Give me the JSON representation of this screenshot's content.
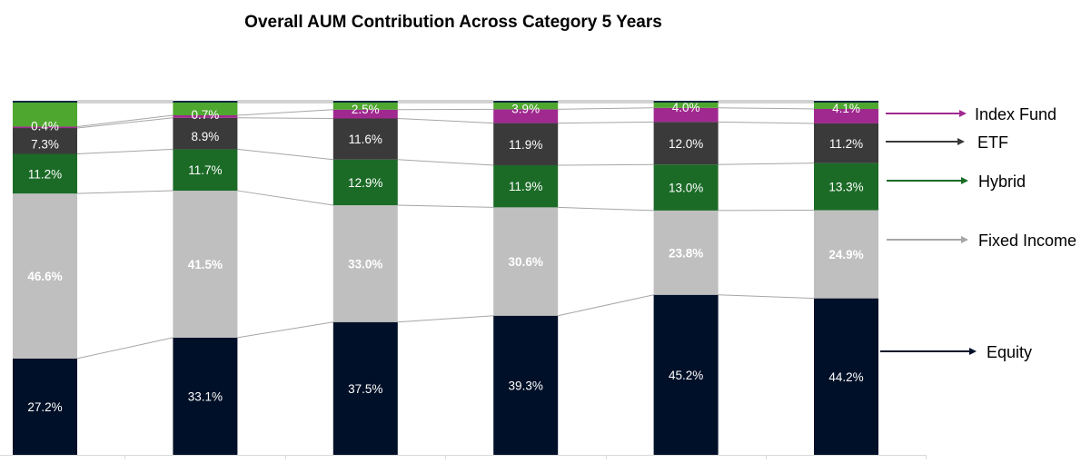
{
  "chart_data": {
    "type": "bar",
    "stacked": true,
    "percent_stacked": true,
    "title": "Overall AUM Contribution Across Category 5 Years",
    "xlabel": "",
    "ylabel": "",
    "ylim": [
      0,
      100
    ],
    "grid": false,
    "legend_placement": "right",
    "categories": [
      "",
      "",
      "",
      "",
      "",
      ""
    ],
    "series": [
      {
        "name": "Equity",
        "color": "#001028",
        "label_weight": "normal",
        "values": [
          27.2,
          33.1,
          37.5,
          39.3,
          45.2,
          44.2
        ],
        "labels": [
          "27.2%",
          "33.1%",
          "37.5%",
          "39.3%",
          "45.2%",
          "44.2%"
        ]
      },
      {
        "name": "Fixed Income",
        "color": "#bfbfbf",
        "label_weight": "bold",
        "values": [
          46.6,
          41.5,
          33.0,
          30.6,
          23.8,
          24.9
        ],
        "labels": [
          "46.6%",
          "41.5%",
          "33.0%",
          "30.6%",
          "23.8%",
          "24.9%"
        ]
      },
      {
        "name": "Hybrid",
        "color": "#1b6b27",
        "label_weight": "normal",
        "values": [
          11.2,
          11.7,
          12.9,
          11.9,
          13.0,
          13.3
        ],
        "labels": [
          "11.2%",
          "11.7%",
          "12.9%",
          "11.9%",
          "13.0%",
          "13.3%"
        ]
      },
      {
        "name": "ETF",
        "color": "#3a3a3a",
        "label_weight": "normal",
        "values": [
          7.3,
          8.9,
          11.6,
          11.9,
          12.0,
          11.2
        ],
        "labels": [
          "7.3%",
          "8.9%",
          "11.6%",
          "11.9%",
          "12.0%",
          "11.2%"
        ]
      },
      {
        "name": "Index Fund",
        "color": "#a0298f",
        "label_weight": "normal",
        "values": [
          0.4,
          0.7,
          2.5,
          3.9,
          4.0,
          4.1
        ],
        "labels": [
          "0.4%",
          "0.7%",
          "2.5%",
          "3.9%",
          "4.0%",
          "4.1%"
        ]
      }
    ],
    "remainder_colors": {
      "other": "#4ea72e",
      "cap": "#0e2841"
    },
    "legend": [
      {
        "label": "Index Fund",
        "color": "#a0298f"
      },
      {
        "label": "ETF",
        "color": "#3a3a3a"
      },
      {
        "label": "Hybrid",
        "color": "#1b6b27"
      },
      {
        "label": "Fixed Income",
        "color": "#a6a6a6"
      },
      {
        "label": "Equity",
        "color": "#001028"
      }
    ]
  }
}
